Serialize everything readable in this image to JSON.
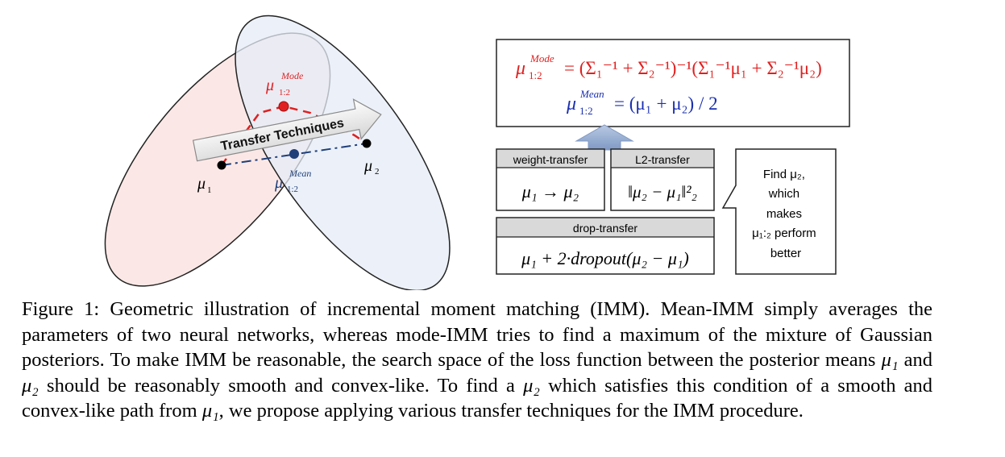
{
  "figure": {
    "left_diagram": {
      "mode_label": "μ",
      "mode_sub": "1:2",
      "mode_sup": "Mode",
      "mean_label": "μ",
      "mean_sub": "1:2",
      "mean_sup": "Mean",
      "mu1_label": "μ",
      "mu1_sub": "1",
      "mu2_label": "μ",
      "mu2_sub": "2",
      "arrow_label": "Transfer Techniques",
      "colors": {
        "red": "#e02020",
        "blue": "#1f3f7a",
        "ellipse1_fill": "#fbe8e6",
        "ellipse2_fill": "#e6ecf7"
      }
    },
    "equations": {
      "mode_eq_lhs": "μ",
      "mode_eq_lhs_sup": "Mode",
      "mode_eq_lhs_sub": "1:2",
      "mode_eq_rhs": "= (Σ₁⁻¹ + Σ₂⁻¹)⁻¹(Σ₁⁻¹μ₁ + Σ₂⁻¹μ₂)",
      "mean_eq_lhs": "μ",
      "mean_eq_lhs_sup": "Mean",
      "mean_eq_lhs_sub": "1:2",
      "mean_eq_rhs": "= (μ₁ + μ₂) / 2"
    },
    "boxes": {
      "weight_transfer_title": "weight-transfer",
      "weight_transfer_eq": "μ₁ → μ₂",
      "l2_transfer_title": "L2-transfer",
      "l2_transfer_eq": "‖μ₂ − μ₁‖²₂",
      "drop_transfer_title": "drop-transfer",
      "drop_transfer_eq": "μ₁ + 2·dropout(μ₂ − μ₁)"
    },
    "callout": {
      "line1": "Find μ₂,",
      "line2": "which",
      "line3": "makes",
      "line4": "μ₁:₂ perform",
      "line5": "better"
    }
  },
  "caption": {
    "label": "Figure 1:",
    "text_1": "Geometric illustration of incremental moment matching (IMM). Mean-IMM simply averages the parameters of two neural networks, whereas mode-IMM tries to find a maximum of the mixture of Gaussian posteriors. To make IMM be reasonable, the search space of the loss function between the posterior means",
    "mu1": "μ₁",
    "and": "and",
    "mu2": "μ₂",
    "text_2": "should be reasonably smooth and convex-like. To find a",
    "text_3": "which satisfies this condition of a smooth and convex-like path from",
    "text_4": ", we propose applying various transfer techniques for the IMM procedure."
  }
}
